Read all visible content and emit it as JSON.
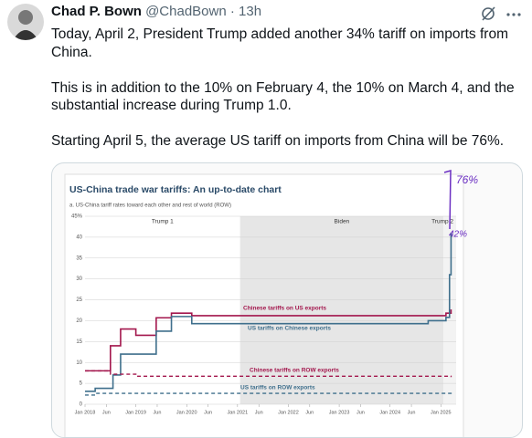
{
  "post": {
    "author_name": "Chad P. Bown",
    "handle": "@ChadBown",
    "separator": "·",
    "time": "13h",
    "paragraphs": [
      "Today, April 2, President Trump added another 34% tariff on imports from China.",
      "This is in addition to the 10% on February 4, the 10% on March 4, and the substantial increase during Trump 1.0.",
      "Starting April 5, the average US tariff on imports from China will be 76%."
    ]
  },
  "chart_data": {
    "type": "line",
    "step": true,
    "title": "US-China trade war tariffs: An up-to-date chart",
    "subtitle": "a. US-China tariff rates toward each other and rest of world (ROW)",
    "xlim": [
      2018,
      2025.3
    ],
    "ylim": [
      0,
      45
    ],
    "yticks": [
      0,
      5,
      10,
      15,
      20,
      25,
      30,
      35,
      {
        "value": 40,
        "label": "40"
      },
      {
        "value": 45,
        "label": "45%"
      }
    ],
    "xticks": [
      {
        "value": 2018,
        "label": "Jan 2018"
      },
      {
        "value": 2018.42,
        "label": "Jun"
      },
      {
        "value": 2019,
        "label": "Jan 2019"
      },
      {
        "value": 2019.42,
        "label": "Jun"
      },
      {
        "value": 2020,
        "label": "Jan 2020"
      },
      {
        "value": 2020.42,
        "label": "Jun"
      },
      {
        "value": 2021,
        "label": "Jan 2021"
      },
      {
        "value": 2021.42,
        "label": "Jun"
      },
      {
        "value": 2022,
        "label": "Jan 2022"
      },
      {
        "value": 2022.42,
        "label": "Jun"
      },
      {
        "value": 2023,
        "label": "Jan 2023"
      },
      {
        "value": 2023.42,
        "label": "Jun"
      },
      {
        "value": 2024,
        "label": "Jan 2024"
      },
      {
        "value": 2024.42,
        "label": "Jun"
      },
      {
        "value": 2025,
        "label": "Jan 2025"
      }
    ],
    "grid": true,
    "periods": [
      {
        "name": "Trump 1",
        "start": 2018,
        "end": 2021.05,
        "color": "#ffffff"
      },
      {
        "name": "Biden",
        "start": 2021.05,
        "end": 2025.05,
        "color": "#e6e6e6"
      },
      {
        "name": "Trump 2",
        "start": 2025.05,
        "end": 2025.3,
        "color": "#f3f3f3"
      }
    ],
    "series": [
      {
        "name": "Chinese tariffs on US exports",
        "color": "#a3174d",
        "dash": false,
        "x": [
          2018,
          2018.5,
          2018.7,
          2019.0,
          2019.4,
          2019.7,
          2020.1,
          2025.1,
          2025.2
        ],
        "values": [
          8,
          14,
          18,
          16.5,
          20.7,
          21.8,
          21.2,
          21.8,
          22.7
        ]
      },
      {
        "name": "US tariffs on Chinese exports",
        "color": "#3f6f8c",
        "dash": false,
        "x": [
          2018,
          2018.2,
          2018.55,
          2018.7,
          2019.4,
          2019.7,
          2020.1,
          2024.75,
          2025.1,
          2025.17,
          2025.2
        ],
        "values": [
          3.1,
          3.8,
          7,
          12,
          17.5,
          21,
          19.3,
          20,
          20.8,
          31,
          41
        ]
      },
      {
        "name": "Chinese tariffs on ROW exports",
        "color": "#a3174d",
        "dash": true,
        "x": [
          2018,
          2018.5,
          2019.0,
          2025.2
        ],
        "values": [
          8,
          7.2,
          6.7,
          6.5
        ]
      },
      {
        "name": "US tariffs on ROW exports",
        "color": "#3f6f8c",
        "dash": true,
        "x": [
          2018,
          2018.2,
          2025.05,
          2025.2
        ],
        "values": [
          2.2,
          2.6,
          2.6,
          3
        ]
      }
    ],
    "annotations": [
      "76%",
      "42%"
    ]
  }
}
